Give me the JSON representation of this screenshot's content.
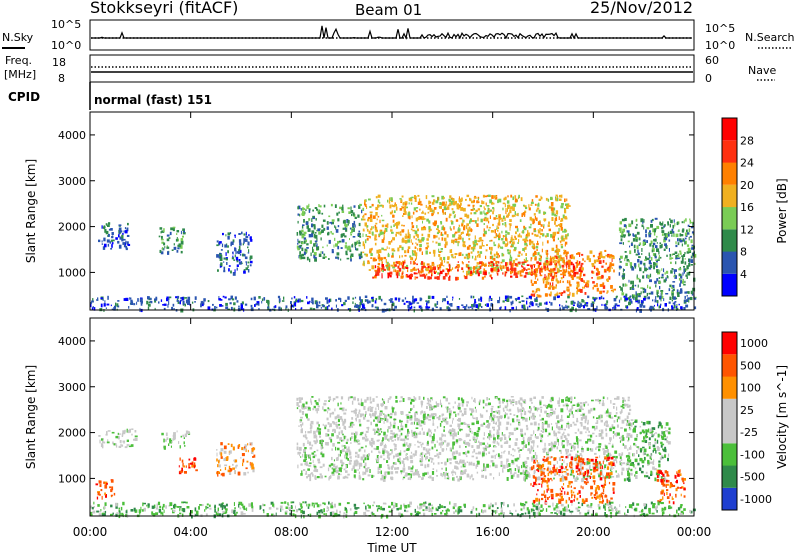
{
  "header": {
    "title": "Stokkseyri (fitACF)",
    "beam": "Beam 01",
    "date": "25/Nov/2012"
  },
  "top_panels": {
    "noise": {
      "left_label": "N.Sky",
      "left_ticks": [
        "10^5",
        "10^0"
      ],
      "right_ticks": [
        "10^5",
        "10^0"
      ],
      "right_label": "N.Search"
    },
    "freq": {
      "left_label_1": "Freq.",
      "left_label_2": "[MHz]",
      "left_ticks": [
        "18",
        "8"
      ],
      "right_ticks": [
        "60",
        "0"
      ],
      "right_label": "Nave"
    },
    "cpid": {
      "label": "CPID",
      "text": "normal (fast) 151"
    }
  },
  "chart_data": [
    {
      "type": "heatmap",
      "title": "",
      "xlabel": "",
      "ylabel": "Slant Range [km]",
      "xlim": [
        0,
        24
      ],
      "ylim": [
        180,
        4500
      ],
      "y_ticks": [
        "1000",
        "2000",
        "3000",
        "4000"
      ],
      "colorbar": {
        "label": "Power [dB]",
        "ticks": [
          "4",
          "8",
          "12",
          "16",
          "20",
          "24",
          "28"
        ],
        "colors": [
          "#0000ff",
          "#2a55b0",
          "#2f8a4a",
          "#7acc55",
          "#f0b020",
          "#ff8000",
          "#ff3010",
          "#ff0000"
        ]
      },
      "regions": [
        {
          "t": [
            0.3,
            1.5
          ],
          "r": [
            1500,
            2100
          ],
          "level": 1
        },
        {
          "t": [
            2.7,
            3.8
          ],
          "r": [
            1450,
            2000
          ],
          "level": 2
        },
        {
          "t": [
            5.0,
            6.4
          ],
          "r": [
            1000,
            1900
          ],
          "level": 1
        },
        {
          "t": [
            8.2,
            10.8
          ],
          "r": [
            1300,
            2500
          ],
          "level": 2
        },
        {
          "t": [
            10.8,
            19.0
          ],
          "r": [
            1000,
            2700
          ],
          "level": 4
        },
        {
          "t": [
            11.2,
            19.5
          ],
          "r": [
            900,
            1250
          ],
          "level": 6
        },
        {
          "t": [
            17.5,
            20.8
          ],
          "r": [
            500,
            1500
          ],
          "level": 5
        },
        {
          "t": [
            21.0,
            24.0
          ],
          "r": [
            450,
            2200
          ],
          "level": 2
        },
        {
          "t": [
            0.0,
            24.0
          ],
          "r": [
            200,
            500
          ],
          "level": 1
        }
      ]
    },
    {
      "type": "heatmap",
      "title": "",
      "xlabel": "Time UT",
      "ylabel": "Slant Range [km]",
      "xlim": [
        0,
        24
      ],
      "ylim": [
        180,
        4500
      ],
      "x_ticks": [
        "00:00",
        "04:00",
        "08:00",
        "12:00",
        "16:00",
        "20:00",
        "00:00"
      ],
      "y_ticks": [
        "1000",
        "2000",
        "3000",
        "4000"
      ],
      "colorbar": {
        "label": "Velocity [m s^-1]",
        "ticks": [
          "1000",
          "500",
          "100",
          "25",
          "-25",
          "-100",
          "-500",
          "-1000"
        ],
        "colors": [
          "#1f3fd0",
          "#2f8a4a",
          "#4bbf3a",
          "#c8c8c8",
          "#c8c8c8",
          "#ff9000",
          "#ff5500",
          "#ff0000"
        ]
      },
      "regions": [
        {
          "t": [
            0.3,
            1.8
          ],
          "r": [
            1700,
            2100
          ],
          "level": 3
        },
        {
          "t": [
            2.8,
            3.9
          ],
          "r": [
            1700,
            2050
          ],
          "level": 3
        },
        {
          "t": [
            3.5,
            4.2
          ],
          "r": [
            1100,
            1500
          ],
          "level": 6
        },
        {
          "t": [
            5.0,
            6.5
          ],
          "r": [
            1100,
            1800
          ],
          "level": 5
        },
        {
          "t": [
            8.2,
            21.5
          ],
          "r": [
            1000,
            2800
          ],
          "level": 3
        },
        {
          "t": [
            0.2,
            1.0
          ],
          "r": [
            600,
            1000
          ],
          "level": 6
        },
        {
          "t": [
            17.5,
            20.8
          ],
          "r": [
            500,
            1500
          ],
          "level": 6
        },
        {
          "t": [
            21.3,
            23.0
          ],
          "r": [
            1000,
            2300
          ],
          "level": 2
        },
        {
          "t": [
            22.5,
            23.6
          ],
          "r": [
            500,
            1200
          ],
          "level": 6
        },
        {
          "t": [
            0.0,
            24.0
          ],
          "r": [
            200,
            500
          ],
          "level": 2
        }
      ]
    }
  ]
}
